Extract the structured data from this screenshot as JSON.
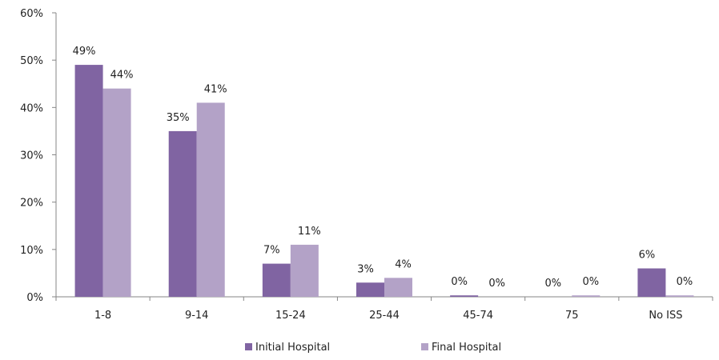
{
  "chart_data": {
    "type": "bar",
    "categories": [
      "1-8",
      "9-14",
      "15-24",
      "25-44",
      "45-74",
      "75",
      "No ISS"
    ],
    "series": [
      {
        "name": "Initial Hospital",
        "color": "#8064a2",
        "values": [
          49,
          35,
          7,
          3,
          0.3,
          0,
          6
        ],
        "labels": [
          "49%",
          "35%",
          "7%",
          "3%",
          "0%",
          "0%",
          "6%"
        ]
      },
      {
        "name": "Final Hospital",
        "color": "#b3a2c7",
        "values": [
          44,
          41,
          11,
          4,
          0,
          0.3,
          0.3
        ],
        "labels": [
          "44%",
          "41%",
          "11%",
          "4%",
          "0%",
          "0%",
          "0%"
        ]
      }
    ],
    "ylim": [
      0,
      60
    ],
    "yticks": [
      0,
      10,
      20,
      30,
      40,
      50,
      60
    ],
    "ytick_labels": [
      "0%",
      "10%",
      "20%",
      "30%",
      "40%",
      "50%",
      "60%"
    ],
    "grid": false,
    "legend_position": "bottom",
    "title": "",
    "xlabel": "",
    "ylabel": ""
  }
}
